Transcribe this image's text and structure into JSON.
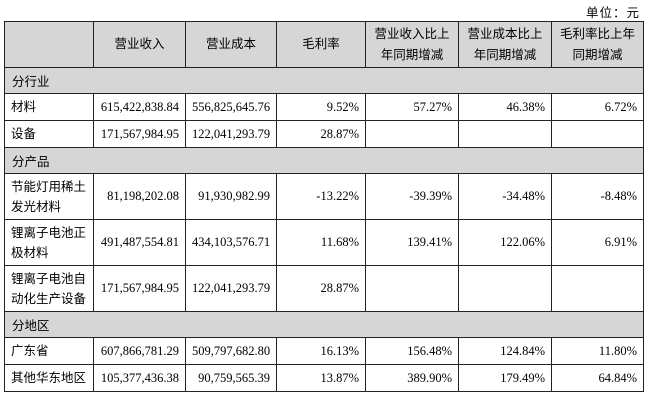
{
  "unit_label": "单位：元",
  "table": {
    "columns": [
      "",
      "营业收入",
      "营业成本",
      "毛利率",
      "营业收入比上年同期增减",
      "营业成本比上年同期增减",
      "毛利率比上年同期增减"
    ],
    "sections": [
      {
        "title": "分行业",
        "rows": [
          {
            "label": "材料",
            "values": [
              "615,422,838.84",
              "556,825,645.76",
              "9.52%",
              "57.27%",
              "46.38%",
              "6.72%"
            ]
          },
          {
            "label": "设备",
            "values": [
              "171,567,984.95",
              "122,041,293.79",
              "28.87%",
              "",
              "",
              ""
            ]
          }
        ]
      },
      {
        "title": "分产品",
        "rows": [
          {
            "label": "节能灯用稀土发光材料",
            "values": [
              "81,198,202.08",
              "91,930,982.99",
              "-13.22%",
              "-39.39%",
              "-34.48%",
              "-8.48%"
            ]
          },
          {
            "label": "锂离子电池正极材料",
            "values": [
              "491,487,554.81",
              "434,103,576.71",
              "11.68%",
              "139.41%",
              "122.06%",
              "6.91%"
            ]
          },
          {
            "label": "锂离子电池自动化生产设备",
            "values": [
              "171,567,984.95",
              "122,041,293.79",
              "28.87%",
              "",
              "",
              ""
            ]
          }
        ]
      },
      {
        "title": "分地区",
        "rows": [
          {
            "label": "广东省",
            "values": [
              "607,866,781.29",
              "509,797,682.80",
              "16.13%",
              "156.48%",
              "124.84%",
              "11.80%"
            ]
          },
          {
            "label": "其他华东地区",
            "values": [
              "105,377,436.38",
              "90,759,565.39",
              "13.87%",
              "389.90%",
              "179.49%",
              "64.84%"
            ]
          }
        ]
      }
    ],
    "colors": {
      "header_bg": "#d6d6d6",
      "section_bg": "#d6d6d6",
      "border": "#222222"
    }
  }
}
